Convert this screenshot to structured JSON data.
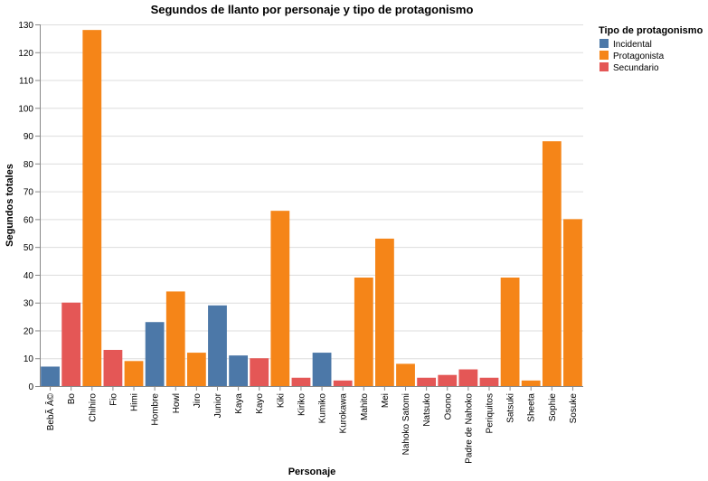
{
  "chart_data": {
    "type": "bar",
    "title": "Segundos de llanto por personaje y tipo de protagonismo",
    "xlabel": "Personaje",
    "ylabel": "Segundos totales",
    "ylim": [
      0,
      130
    ],
    "yticks": [
      0,
      10,
      20,
      30,
      40,
      50,
      60,
      70,
      80,
      90,
      100,
      110,
      120,
      130
    ],
    "grid": true,
    "legend": {
      "title": "Tipo de protagonismo",
      "placement": "right",
      "entries": [
        {
          "name": "Incidental",
          "color": "#4c78a8"
        },
        {
          "name": "Protagonista",
          "color": "#f58518"
        },
        {
          "name": "Secundario",
          "color": "#e45756"
        }
      ]
    },
    "categories": [
      "BebÃ Â©",
      "Bo",
      "Chihiro",
      "Fio",
      "Himi",
      "Hombre",
      "Howl",
      "Jiro",
      "Junior",
      "Kaya",
      "Kayo",
      "Kiki",
      "Kiriko",
      "Kumiko",
      "Kurokawa",
      "Mahito",
      "Mei",
      "Nahoko Satomi",
      "Natsuko",
      "Osono",
      "Padre de Nahoko",
      "Periquitos",
      "Satsuki",
      "Sheeta",
      "Sophie",
      "Sosuke"
    ],
    "values": [
      7,
      30,
      128,
      13,
      9,
      23,
      34,
      12,
      29,
      11,
      10,
      63,
      3,
      12,
      2,
      39,
      53,
      8,
      3,
      4,
      6,
      3,
      39,
      2,
      88,
      60
    ],
    "groups": [
      "Incidental",
      "Secundario",
      "Protagonista",
      "Secundario",
      "Protagonista",
      "Incidental",
      "Protagonista",
      "Protagonista",
      "Incidental",
      "Incidental",
      "Secundario",
      "Protagonista",
      "Secundario",
      "Incidental",
      "Secundario",
      "Protagonista",
      "Protagonista",
      "Protagonista",
      "Secundario",
      "Secundario",
      "Secundario",
      "Secundario",
      "Protagonista",
      "Protagonista",
      "Protagonista",
      "Protagonista"
    ]
  }
}
